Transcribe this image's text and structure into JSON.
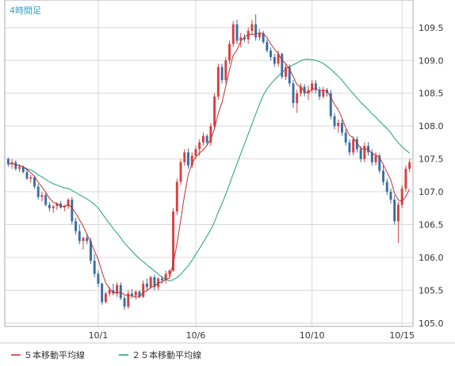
{
  "chart_data": {
    "type": "candlestick",
    "title": "4時間足",
    "y_ticks": [
      "109.5",
      "109.0",
      "108.5",
      "108.0",
      "107.5",
      "107.0",
      "106.5",
      "106.0",
      "105.5",
      "105.0"
    ],
    "ylim": [
      104.95,
      109.92
    ],
    "x_ticks": [
      {
        "label": "10/1",
        "index": 24
      },
      {
        "label": "10/6",
        "index": 50
      },
      {
        "label": "10/10",
        "index": 81
      },
      {
        "label": "10/15",
        "index": 105
      }
    ],
    "grid": true,
    "up_color": "#d94040",
    "down_color": "#3a6ea5",
    "sma5_color": "#c03030",
    "sma25_color": "#1aa07a",
    "legend": [
      {
        "label": "５本移動平均線",
        "color": "#c03030"
      },
      {
        "label": "２５本移動平均線",
        "color": "#1aa07a"
      }
    ],
    "candles": [
      [
        107.5,
        107.52,
        107.38,
        107.42
      ],
      [
        107.42,
        107.5,
        107.35,
        107.45
      ],
      [
        107.45,
        107.48,
        107.32,
        107.35
      ],
      [
        107.35,
        107.42,
        107.3,
        107.38
      ],
      [
        107.38,
        107.4,
        107.28,
        107.3
      ],
      [
        107.3,
        107.34,
        107.18,
        107.2
      ],
      [
        107.2,
        107.26,
        107.14,
        107.22
      ],
      [
        107.22,
        107.24,
        107.05,
        107.08
      ],
      [
        107.08,
        107.12,
        106.88,
        106.92
      ],
      [
        106.92,
        107.0,
        106.85,
        106.95
      ],
      [
        106.95,
        106.98,
        106.78,
        106.8
      ],
      [
        106.8,
        106.84,
        106.7,
        106.75
      ],
      [
        106.75,
        106.8,
        106.68,
        106.78
      ],
      [
        106.78,
        106.84,
        106.72,
        106.82
      ],
      [
        106.82,
        106.86,
        106.74,
        106.76
      ],
      [
        106.76,
        106.8,
        106.7,
        106.78
      ],
      [
        106.78,
        106.9,
        106.74,
        106.88
      ],
      [
        106.88,
        106.92,
        106.5,
        106.55
      ],
      [
        106.55,
        106.6,
        106.35,
        106.4
      ],
      [
        106.4,
        106.5,
        106.2,
        106.25
      ],
      [
        106.25,
        106.32,
        106.12,
        106.3
      ],
      [
        106.3,
        106.36,
        106.2,
        106.25
      ],
      [
        106.25,
        106.3,
        105.9,
        105.95
      ],
      [
        105.95,
        106.05,
        105.7,
        105.75
      ],
      [
        105.75,
        105.8,
        105.55,
        105.6
      ],
      [
        105.6,
        105.62,
        105.28,
        105.32
      ],
      [
        105.32,
        105.48,
        105.3,
        105.45
      ],
      [
        105.45,
        105.55,
        105.4,
        105.5
      ],
      [
        105.5,
        105.6,
        105.42,
        105.45
      ],
      [
        105.45,
        105.62,
        105.4,
        105.58
      ],
      [
        105.58,
        105.62,
        105.35,
        105.38
      ],
      [
        105.38,
        105.42,
        105.2,
        105.25
      ],
      [
        105.25,
        105.5,
        105.22,
        105.45
      ],
      [
        105.45,
        105.52,
        105.38,
        105.42
      ],
      [
        105.42,
        105.5,
        105.36,
        105.48
      ],
      [
        105.48,
        105.5,
        105.38,
        105.4
      ],
      [
        105.4,
        105.65,
        105.38,
        105.6
      ],
      [
        105.6,
        105.68,
        105.5,
        105.55
      ],
      [
        105.55,
        105.72,
        105.52,
        105.7
      ],
      [
        105.7,
        105.74,
        105.5,
        105.55
      ],
      [
        105.55,
        105.7,
        105.5,
        105.68
      ],
      [
        105.68,
        105.72,
        105.6,
        105.65
      ],
      [
        105.65,
        105.8,
        105.6,
        105.75
      ],
      [
        105.75,
        105.82,
        105.7,
        105.8
      ],
      [
        105.8,
        106.75,
        105.78,
        106.7
      ],
      [
        106.7,
        107.2,
        106.65,
        107.15
      ],
      [
        107.15,
        107.5,
        107.1,
        107.45
      ],
      [
        107.45,
        107.65,
        107.4,
        107.6
      ],
      [
        107.6,
        107.66,
        107.35,
        107.4
      ],
      [
        107.4,
        107.6,
        107.36,
        107.55
      ],
      [
        107.55,
        107.7,
        107.5,
        107.65
      ],
      [
        107.65,
        107.8,
        107.55,
        107.75
      ],
      [
        107.75,
        107.9,
        107.7,
        107.85
      ],
      [
        107.85,
        107.88,
        107.72,
        107.75
      ],
      [
        107.75,
        108.05,
        107.7,
        108.0
      ],
      [
        108.0,
        108.5,
        107.95,
        108.45
      ],
      [
        108.45,
        108.95,
        108.4,
        108.9
      ],
      [
        108.9,
        108.95,
        108.65,
        108.7
      ],
      [
        108.7,
        109.05,
        108.65,
        109.0
      ],
      [
        109.0,
        109.3,
        108.95,
        109.25
      ],
      [
        109.25,
        109.6,
        109.2,
        109.55
      ],
      [
        109.55,
        109.62,
        109.25,
        109.3
      ],
      [
        109.3,
        109.42,
        109.2,
        109.35
      ],
      [
        109.35,
        109.4,
        109.28,
        109.32
      ],
      [
        109.32,
        109.5,
        109.25,
        109.45
      ],
      [
        109.45,
        109.62,
        109.4,
        109.55
      ],
      [
        109.55,
        109.7,
        109.3,
        109.35
      ],
      [
        109.35,
        109.48,
        109.3,
        109.42
      ],
      [
        109.42,
        109.45,
        109.25,
        109.28
      ],
      [
        109.28,
        109.32,
        109.12,
        109.15
      ],
      [
        109.15,
        109.2,
        109.0,
        109.05
      ],
      [
        109.05,
        109.1,
        108.9,
        108.95
      ],
      [
        108.95,
        109.15,
        108.9,
        109.1
      ],
      [
        109.1,
        109.12,
        108.72,
        108.75
      ],
      [
        108.75,
        108.95,
        108.7,
        108.9
      ],
      [
        108.9,
        108.94,
        108.6,
        108.65
      ],
      [
        108.65,
        108.7,
        108.28,
        108.35
      ],
      [
        108.35,
        108.55,
        108.2,
        108.5
      ],
      [
        108.5,
        108.65,
        108.45,
        108.6
      ],
      [
        108.6,
        108.64,
        108.45,
        108.5
      ],
      [
        108.5,
        108.62,
        108.4,
        108.55
      ],
      [
        108.55,
        108.7,
        108.5,
        108.65
      ],
      [
        108.65,
        108.7,
        108.5,
        108.55
      ],
      [
        108.55,
        108.6,
        108.4,
        108.45
      ],
      [
        108.45,
        108.6,
        108.42,
        108.55
      ],
      [
        108.55,
        108.58,
        108.45,
        108.5
      ],
      [
        108.5,
        108.55,
        108.1,
        108.15
      ],
      [
        108.15,
        108.2,
        107.95,
        108.0
      ],
      [
        108.0,
        108.1,
        107.9,
        108.05
      ],
      [
        108.05,
        108.1,
        107.85,
        107.9
      ],
      [
        107.9,
        107.95,
        107.7,
        107.75
      ],
      [
        107.75,
        107.8,
        107.55,
        107.6
      ],
      [
        107.6,
        107.85,
        107.55,
        107.8
      ],
      [
        107.8,
        107.84,
        107.6,
        107.65
      ],
      [
        107.65,
        107.7,
        107.45,
        107.5
      ],
      [
        107.5,
        107.75,
        107.45,
        107.7
      ],
      [
        107.7,
        107.76,
        107.55,
        107.6
      ],
      [
        107.6,
        107.65,
        107.4,
        107.45
      ],
      [
        107.45,
        107.6,
        107.4,
        107.55
      ],
      [
        107.55,
        107.58,
        107.28,
        107.32
      ],
      [
        107.32,
        107.4,
        107.1,
        107.15
      ],
      [
        107.15,
        107.2,
        106.95,
        107.0
      ],
      [
        107.0,
        107.05,
        106.82,
        106.88
      ],
      [
        106.88,
        106.95,
        106.5,
        106.55
      ],
      [
        106.55,
        106.85,
        106.22,
        106.8
      ],
      [
        106.8,
        107.1,
        106.75,
        107.05
      ],
      [
        107.05,
        107.4,
        107.0,
        107.35
      ],
      [
        107.35,
        107.5,
        107.3,
        107.45
      ]
    ]
  }
}
